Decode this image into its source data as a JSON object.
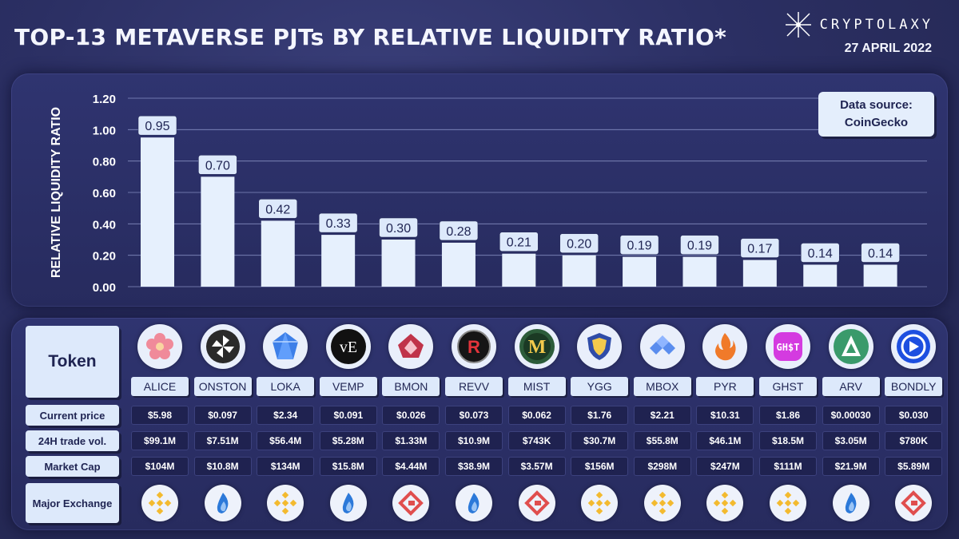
{
  "header": {
    "title": "TOP-13 METAVERSE PJTs BY RELATIVE LIQUIDITY RATIO*",
    "brand": "CRYPTOLAXY",
    "date": "27 APRIL 2022"
  },
  "source": {
    "line1": "Data source:",
    "line2": "CoinGecko"
  },
  "chart_data": {
    "type": "bar",
    "title": "TOP-13 METAVERSE PJTs BY RELATIVE LIQUIDITY RATIO*",
    "ylabel": "RELATIVE LIQUIDITY RATIO",
    "ylim": [
      0,
      1.2
    ],
    "yticks": [
      "0.00",
      "0.20",
      "0.40",
      "0.60",
      "0.80",
      "1.00",
      "1.20"
    ],
    "grid": true,
    "categories": [
      "ALICE",
      "ONSTON",
      "LOKA",
      "VEMP",
      "BMON",
      "REVV",
      "MIST",
      "YGG",
      "MBOX",
      "PYR",
      "GHST",
      "ARV",
      "BONDLY"
    ],
    "values": [
      0.95,
      0.7,
      0.42,
      0.33,
      0.3,
      0.28,
      0.21,
      0.2,
      0.19,
      0.19,
      0.17,
      0.14,
      0.14
    ],
    "value_labels": [
      "0.95",
      "0.70",
      "0.42",
      "0.33",
      "0.30",
      "0.28",
      "0.21",
      "0.20",
      "0.19",
      "0.19",
      "0.17",
      "0.14",
      "0.14"
    ]
  },
  "table": {
    "row_labels": {
      "token": "Token",
      "price": "Current price",
      "volume": "24H trade vol.",
      "mcap": "Market Cap",
      "exchange": "Major Exchange"
    },
    "tokens": [
      {
        "ticker": "ALICE",
        "price": "$5.98",
        "volume": "$99.1M",
        "mcap": "$104M",
        "exchange": "binance",
        "logo": "flower-icon"
      },
      {
        "ticker": "ONSTON",
        "price": "$0.097",
        "volume": "$7.51M",
        "mcap": "$10.8M",
        "exchange": "huobi",
        "logo": "pinwheel-icon"
      },
      {
        "ticker": "LOKA",
        "price": "$2.34",
        "volume": "$56.4M",
        "mcap": "$134M",
        "exchange": "binance",
        "logo": "crystal-icon"
      },
      {
        "ticker": "VEMP",
        "price": "$0.091",
        "volume": "$5.28M",
        "mcap": "$15.8M",
        "exchange": "huobi",
        "logo": "ve-icon"
      },
      {
        "ticker": "BMON",
        "price": "$0.026",
        "volume": "$1.33M",
        "mcap": "$4.44M",
        "exchange": "gate",
        "logo": "monster-icon"
      },
      {
        "ticker": "REVV",
        "price": "$0.073",
        "volume": "$10.9M",
        "mcap": "$38.9M",
        "exchange": "huobi",
        "logo": "r-icon"
      },
      {
        "ticker": "MIST",
        "price": "$0.062",
        "volume": "$743K",
        "mcap": "$3.57M",
        "exchange": "gate",
        "logo": "m-icon"
      },
      {
        "ticker": "YGG",
        "price": "$1.76",
        "volume": "$30.7M",
        "mcap": "$156M",
        "exchange": "binance",
        "logo": "shield-icon"
      },
      {
        "ticker": "MBOX",
        "price": "$2.21",
        "volume": "$55.8M",
        "mcap": "$298M",
        "exchange": "binance",
        "logo": "box-icon"
      },
      {
        "ticker": "PYR",
        "price": "$10.31",
        "volume": "$46.1M",
        "mcap": "$247M",
        "exchange": "binance",
        "logo": "flame-icon"
      },
      {
        "ticker": "GHST",
        "price": "$1.86",
        "volume": "$18.5M",
        "mcap": "$111M",
        "exchange": "binance",
        "logo": "ghost-icon"
      },
      {
        "ticker": "ARV",
        "price": "$0.00030",
        "volume": "$3.05M",
        "mcap": "$21.9M",
        "exchange": "huobi",
        "logo": "a-icon"
      },
      {
        "ticker": "BONDLY",
        "price": "$0.030",
        "volume": "$780K",
        "mcap": "$5.89M",
        "exchange": "gate",
        "logo": "bond-icon"
      }
    ]
  },
  "colors": {
    "bar": "#e6f0fd",
    "binance": "#f3ba2f",
    "huobi": "#2c79d9",
    "gate": "#e04e4e"
  }
}
